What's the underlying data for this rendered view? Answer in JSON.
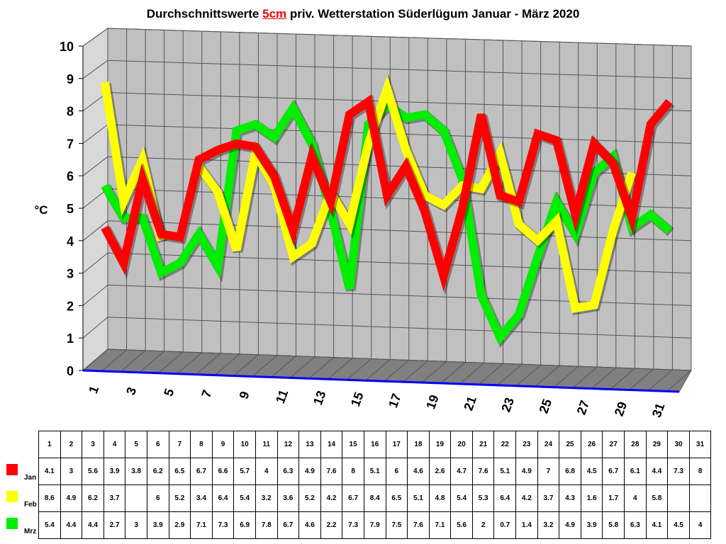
{
  "title_parts": {
    "pre": "Durchschnittswerte ",
    "highlight": "5cm",
    "post": " priv. Wetterstation Süderlügum Januar - März 2020"
  },
  "chart_data": {
    "type": "line",
    "title": "Durchschnittswerte 5cm priv. Wetterstation Süderlügum Januar - März 2020",
    "xlabel": "",
    "ylabel": "°C",
    "ylim": [
      0,
      10
    ],
    "yticks": [
      "0",
      "1",
      "2",
      "3",
      "4",
      "5",
      "6",
      "7",
      "8",
      "9",
      "10"
    ],
    "xtick_labels": [
      "1",
      "3",
      "5",
      "7",
      "9",
      "11",
      "13",
      "15",
      "17",
      "19",
      "21",
      "23",
      "25",
      "27",
      "29",
      "31"
    ],
    "x": [
      1,
      2,
      3,
      4,
      5,
      6,
      7,
      8,
      9,
      10,
      11,
      12,
      13,
      14,
      15,
      16,
      17,
      18,
      19,
      20,
      21,
      22,
      23,
      24,
      25,
      26,
      27,
      28,
      29,
      30,
      31
    ],
    "grid": true,
    "series": [
      {
        "name": "Jan",
        "color": "#ff0000",
        "values": [
          4.1,
          3,
          5.6,
          3.9,
          3.8,
          6.2,
          6.5,
          6.7,
          6.6,
          5.7,
          4,
          6.3,
          4.9,
          7.6,
          8,
          5.1,
          6,
          4.6,
          2.6,
          4.7,
          7.6,
          5.1,
          4.9,
          7,
          6.8,
          4.5,
          6.7,
          6.1,
          4.4,
          7.3,
          8
        ]
      },
      {
        "name": "Feb",
        "color": "#ffff00",
        "values": [
          8.6,
          4.9,
          6.2,
          3.7,
          null,
          6,
          5.2,
          3.4,
          6.4,
          5.4,
          3.2,
          3.6,
          5.2,
          4.2,
          6.7,
          8.4,
          6.5,
          5.1,
          4.8,
          5.4,
          5.3,
          6.4,
          4.2,
          3.7,
          4.3,
          1.6,
          1.7,
          4,
          5.8,
          null,
          null
        ]
      },
      {
        "name": "Mrz",
        "color": "#00ee00",
        "values": [
          5.4,
          4.4,
          4.4,
          2.7,
          3,
          3.9,
          2.9,
          7.1,
          7.3,
          6.9,
          7.8,
          6.7,
          4.6,
          2.2,
          7.3,
          7.9,
          7.5,
          7.6,
          7.1,
          5.6,
          2,
          0.7,
          1.4,
          3.2,
          4.9,
          3.9,
          5.8,
          6.3,
          4.1,
          4.5,
          4
        ]
      }
    ]
  }
}
